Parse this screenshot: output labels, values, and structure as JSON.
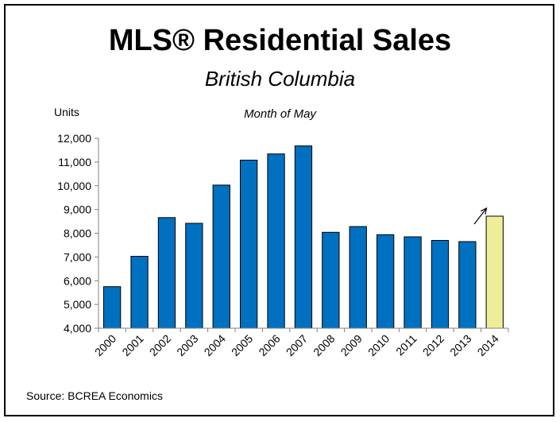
{
  "header": {
    "title": "MLS® Residential Sales",
    "subtitle": "British Columbia"
  },
  "footer": {
    "source": "Source: BCREA Economics"
  },
  "chart_data": {
    "type": "bar",
    "title": "MLS® Residential Sales",
    "subtitle": "British Columbia",
    "annotation": "Month of May",
    "xlabel": "",
    "ylabel": "Units",
    "ylim": [
      4000,
      12000
    ],
    "yticks": [
      4000,
      5000,
      6000,
      7000,
      8000,
      9000,
      10000,
      11000,
      12000
    ],
    "ytick_labels": [
      "4,000",
      "5,000",
      "6,000",
      "7,000",
      "8,000",
      "9,000",
      "10,000",
      "11,000",
      "12,000"
    ],
    "categories": [
      "2000",
      "2001",
      "2002",
      "2003",
      "2004",
      "2005",
      "2006",
      "2007",
      "2008",
      "2009",
      "2010",
      "2011",
      "2012",
      "2013",
      "2014"
    ],
    "values": [
      5750,
      7030,
      8660,
      8420,
      10030,
      11080,
      11340,
      11680,
      8040,
      8280,
      7940,
      7850,
      7700,
      7650,
      8720
    ],
    "colors": {
      "bar": "#0070C0",
      "highlight": "#EEEE99",
      "highlight_category": "2014",
      "axis": "#808080"
    },
    "grid": false,
    "legend": "none",
    "arrow": {
      "from_category": "2013",
      "to_category": "2014",
      "icon": "up-right-arrow"
    }
  }
}
